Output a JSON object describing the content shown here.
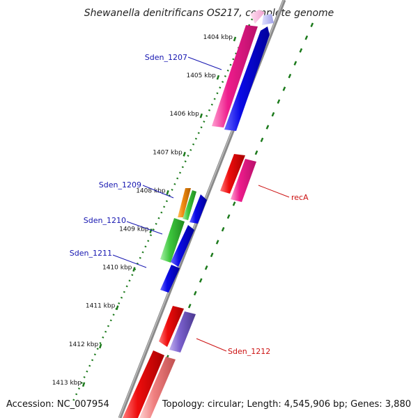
{
  "title": "Shewanella denitrificans OS217, complete genome",
  "ticks": [
    "1404 kbp",
    "1405 kbp",
    "1406 kbp",
    "1407 kbp",
    "1408 kbp",
    "1409 kbp",
    "1410 kbp",
    "1411 kbp",
    "1412 kbp",
    "1413 kbp"
  ],
  "labels": {
    "sden_1207": "Sden_1207",
    "sden_1209": "Sden_1209",
    "sden_1210": "Sden_1210",
    "sden_1211": "Sden_1211",
    "reca": "recA",
    "sden_1212": "Sden_1212"
  },
  "colors": {
    "forward_label": "#1515b0",
    "reverse_label": "#cc1111",
    "backbone": "#8a8a8a",
    "ruler": "#1c7a1c",
    "magenta": "#ee1c8c",
    "blue": "#0a0ae6",
    "red": "#ee0d0d",
    "orange": "#f08a12",
    "green": "#3dc63d",
    "lavender": "#7a60cc",
    "salmon": "#f08080"
  },
  "footer": {
    "accession": "Accession: NC_007954",
    "topology": "Topology: circular; Length: 4,545,906 bp; Genes: 3,880"
  }
}
